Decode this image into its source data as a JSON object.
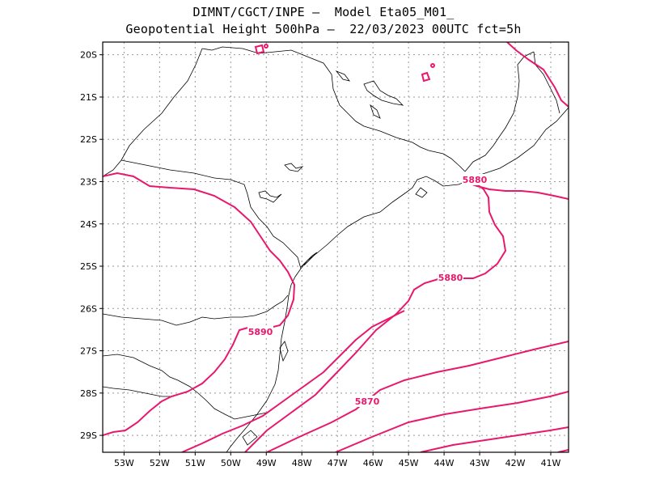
{
  "title_line1": "DIMNT/CGCT/INPE –  Model Eta05_M01_",
  "title_line2": "Geopotential Height 500hPa –  22/03/2023 00UTC fct=5h",
  "colors": {
    "contour": "#e8186c",
    "coast": "#000000",
    "grid": "#888888"
  },
  "latitude_labels": [
    "20S",
    "21S",
    "22S",
    "23S",
    "24S",
    "25S",
    "26S",
    "27S",
    "28S",
    "29S"
  ],
  "longitude_labels": [
    "53W",
    "52W",
    "51W",
    "50W",
    "49W",
    "48W",
    "47W",
    "46W",
    "45W",
    "44W",
    "43W",
    "42W",
    "41W"
  ],
  "contour_labels": [
    "5880",
    "5880",
    "5890",
    "5870"
  ],
  "map_extent": {
    "lon_min": -53.6,
    "lon_max": -40.5,
    "lat_min": -29.4,
    "lat_max": -19.7
  }
}
